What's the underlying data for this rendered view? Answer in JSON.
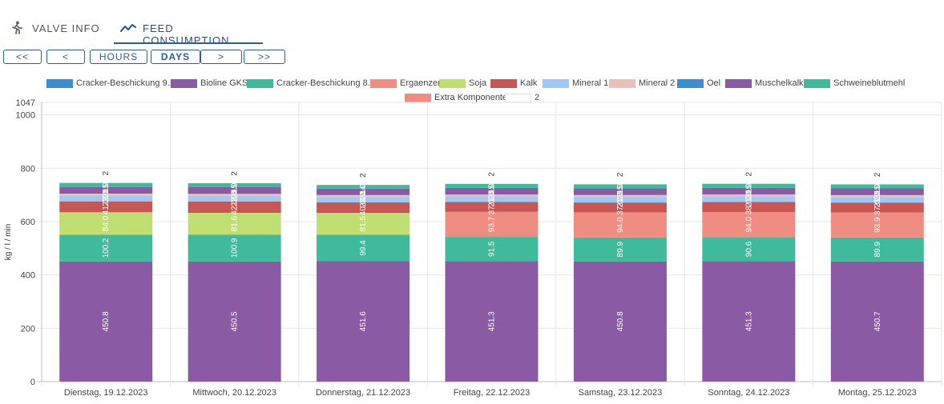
{
  "tabs": [
    {
      "label": "VALVE INFO",
      "icon": "runner-icon"
    },
    {
      "label": "FEED CONSUMPTION",
      "icon": "trend-line-icon",
      "active": true
    }
  ],
  "nav": {
    "first": "<<",
    "prev": "<",
    "hours": "HOURS",
    "days": "DAYS",
    "next": ">",
    "last": ">>",
    "active": "days"
  },
  "legend": [
    {
      "label": "Cracker-Beschickung 9.1",
      "color": "#3b8ed0"
    },
    {
      "label": "Bioline GKS",
      "color": "#8a5aa5"
    },
    {
      "label": "Cracker-Beschickung 8.1",
      "color": "#3fbb9b"
    },
    {
      "label": "Ergaenzer",
      "color": "#f08d82"
    },
    {
      "label": "Soja",
      "color": "#c0df72"
    },
    {
      "label": "Kalk",
      "color": "#c75755"
    },
    {
      "label": "Mineral 1",
      "color": "#9ec9f5"
    },
    {
      "label": "Mineral 2",
      "color": "#e8c1b8"
    },
    {
      "label": "Oel",
      "color": "#3b8ed0"
    },
    {
      "label": "Muschelkalk",
      "color": "#8a5aa5"
    },
    {
      "label": "Schweineblutmehl",
      "color": "#3fbb9b"
    },
    {
      "label": "Extra Komponente",
      "color": "#f08d82"
    },
    {
      "label": "2",
      "color": "#ffffff"
    }
  ],
  "chart_data": {
    "type": "bar",
    "stacked": true,
    "ylabel": "kg / l / min",
    "ylim": [
      0,
      1047
    ],
    "yticks": [
      0,
      200,
      400,
      600,
      800,
      1000,
      1047
    ],
    "grid": true,
    "legend_position": "top",
    "categories": [
      "Dienstag, 19.12.2023",
      "Mittwoch, 20.12.2023",
      "Donnerstag, 21.12.2023",
      "Freitag, 22.12.2023",
      "Samstag, 23.12.2023",
      "Sonntag, 24.12.2023",
      "Montag, 25.12.2023"
    ],
    "series": [
      {
        "name": "Bioline GKS",
        "color": "#8a5aa5",
        "values": [
          450.8,
          450.5,
          451.6,
          451.3,
          450.8,
          451.3,
          450.7
        ]
      },
      {
        "name": "Cracker-Beschickung 8.1",
        "color": "#3fbb9b",
        "values": [
          100.2,
          100.9,
          99.4,
          91.5,
          89.9,
          90.6,
          89.9
        ]
      },
      {
        "name": "Soja",
        "color": "#c0df72",
        "values": [
          84.0,
          81.6,
          81.5,
          0,
          0,
          0,
          0
        ]
      },
      {
        "name": "Extra Komponente",
        "color": "#f08d82",
        "values": [
          0,
          0,
          0,
          93.7,
          94.0,
          94.0,
          93.9
        ]
      },
      {
        "name": "Kalk",
        "color": "#c75755",
        "values": [
          41,
          42,
          40,
          37,
          37,
          38,
          37
        ]
      },
      {
        "name": "Mineral 1",
        "color": "#9ec9f5",
        "values": [
          22,
          22,
          20,
          21,
          21,
          21,
          21
        ]
      },
      {
        "name": "Mineral 2",
        "color": "#e8c1b8",
        "values": [
          7,
          7,
          7,
          7,
          7,
          7,
          7
        ]
      },
      {
        "name": "Muschelkalk",
        "color": "#8a5aa5",
        "values": [
          25,
          25,
          24,
          25,
          25,
          25,
          25
        ]
      },
      {
        "name": "Schweineblutmehl",
        "color": "#3fbb9b",
        "values": [
          15,
          15,
          14,
          15,
          15,
          15,
          15
        ]
      }
    ],
    "top_labels": [
      "2",
      "2",
      "2",
      "2",
      "2",
      "2",
      "2"
    ]
  }
}
